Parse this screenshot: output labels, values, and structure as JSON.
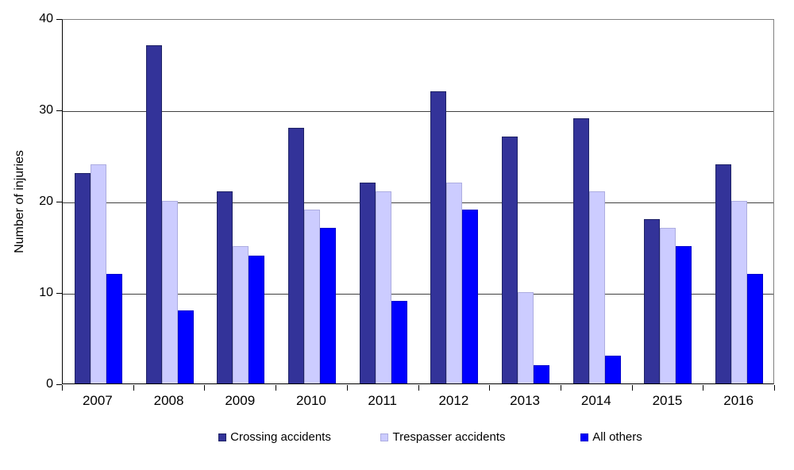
{
  "chart_data": {
    "type": "bar",
    "title": "",
    "xlabel": "",
    "ylabel": "Number of injuries",
    "ylim": [
      0,
      40
    ],
    "yticks": [
      0,
      10,
      20,
      30,
      40
    ],
    "grid": "horizontal",
    "legend_position": "bottom",
    "categories": [
      "2007",
      "2008",
      "2009",
      "2010",
      "2011",
      "2012",
      "2013",
      "2014",
      "2015",
      "2016"
    ],
    "series": [
      {
        "name": "Crossing accidents",
        "color": "#333399",
        "border_color": "#1F2366",
        "values": [
          23,
          37,
          21,
          28,
          22,
          32,
          27,
          29,
          18,
          24
        ]
      },
      {
        "name": "Trespasser accidents",
        "color": "#CCCCFF",
        "border_color": "#ADADE0",
        "values": [
          24,
          20,
          15,
          19,
          21,
          22,
          10,
          21,
          17,
          20
        ]
      },
      {
        "name": "All others",
        "color": "#0000FF",
        "border_color": "#0000CC",
        "values": [
          12,
          8,
          14,
          17,
          9,
          19,
          2,
          3,
          15,
          12
        ]
      }
    ]
  },
  "colors": {
    "background": "#FFFFFF",
    "gridline": "#404040",
    "plot_border": "#808080",
    "axis": "#000000",
    "text": "#000000"
  }
}
